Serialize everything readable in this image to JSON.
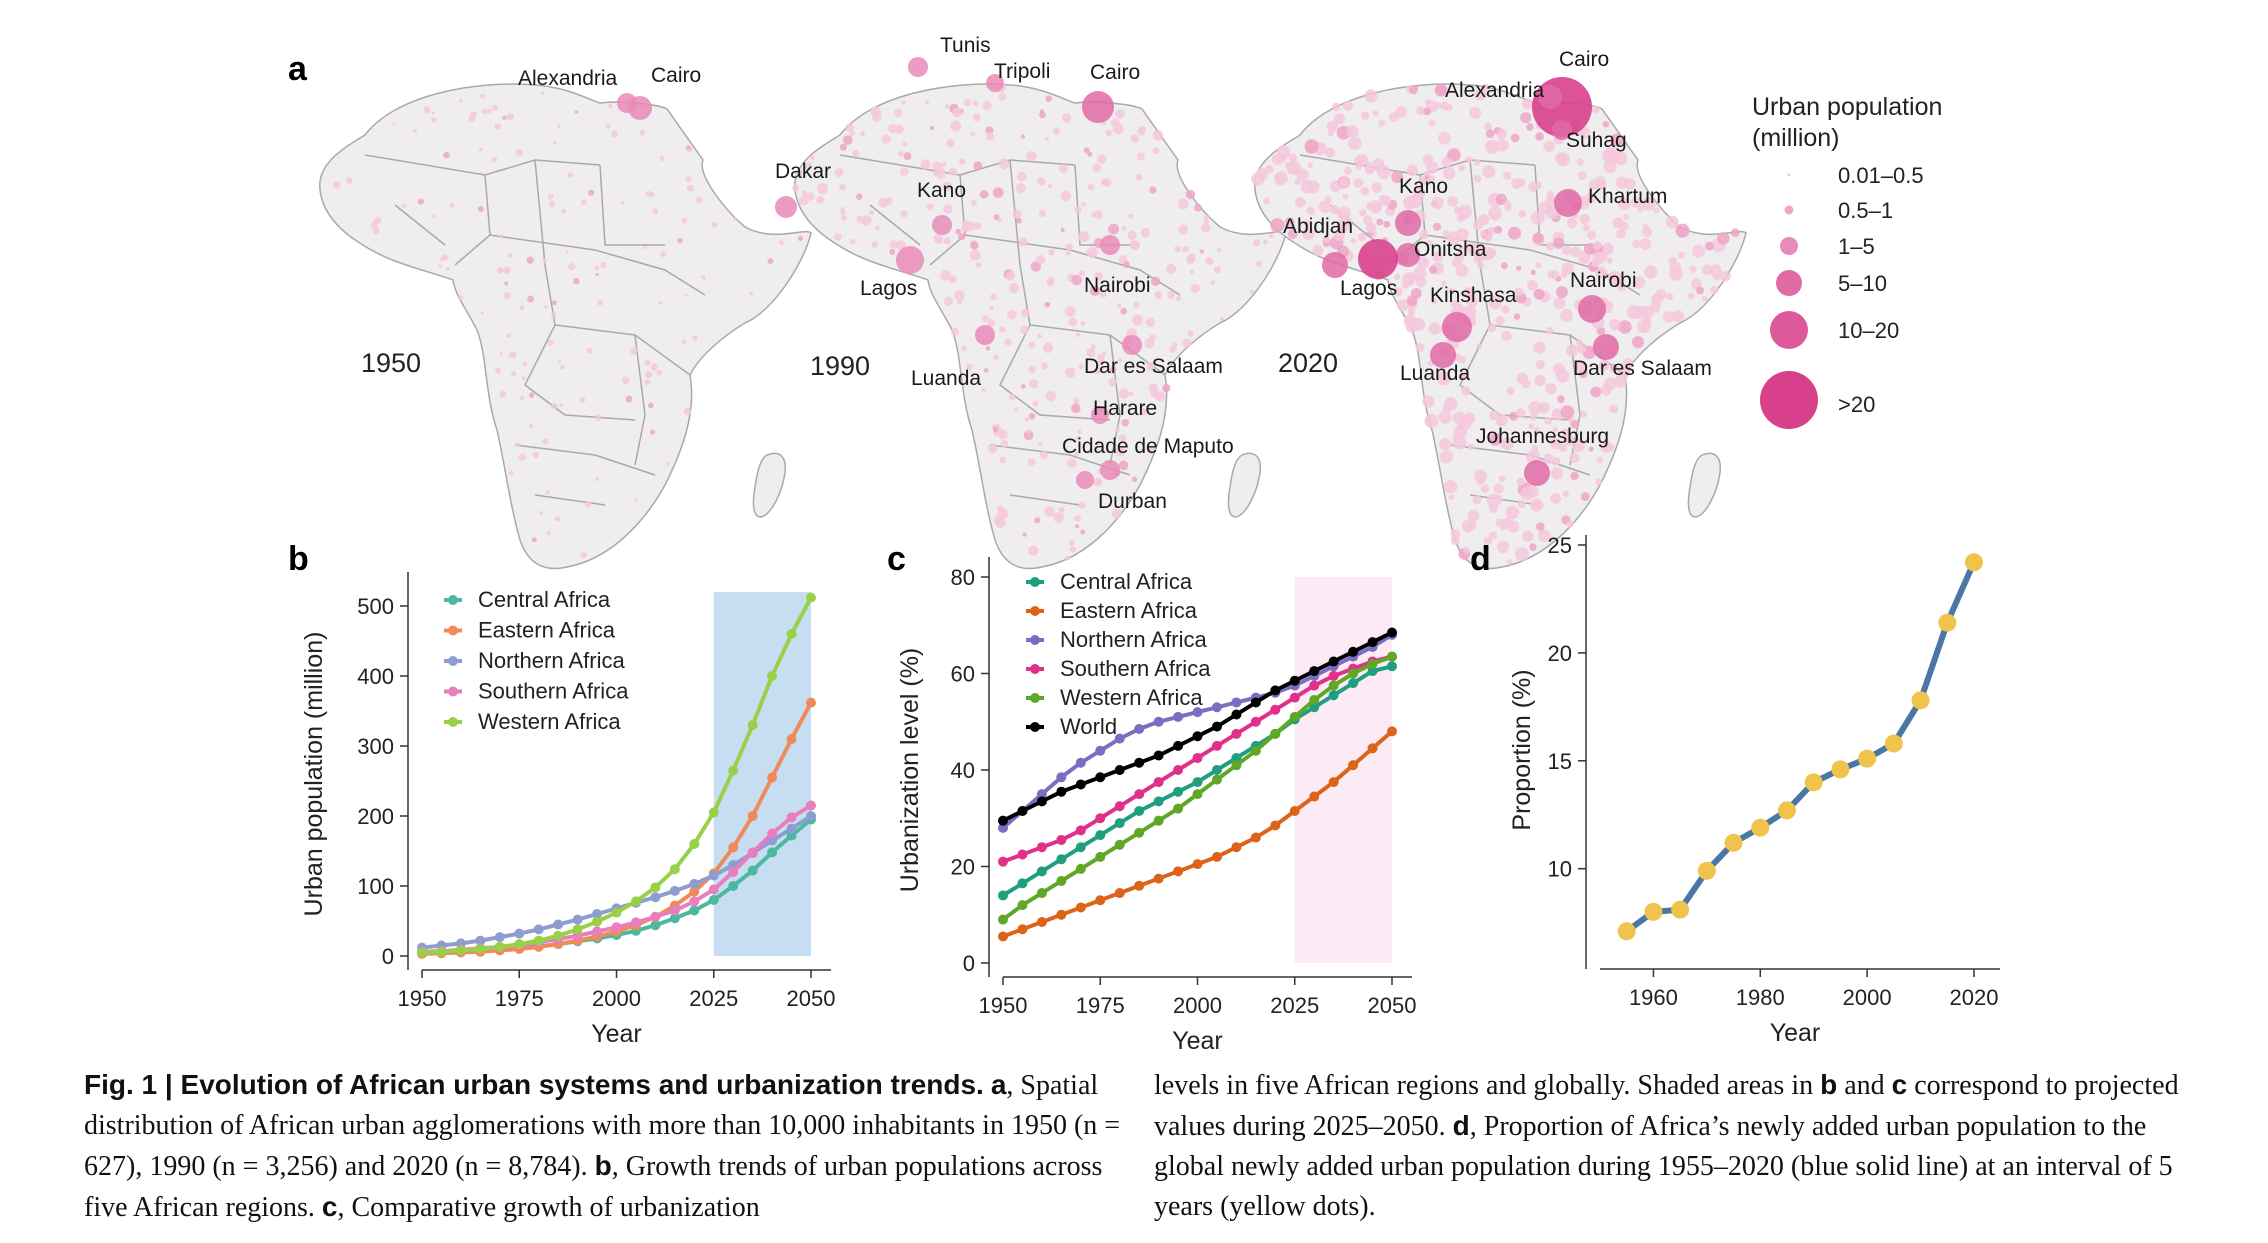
{
  "panel_a": {
    "letter": "a",
    "maps": [
      {
        "year": "1950",
        "cities": [
          "Alexandria",
          "Cairo"
        ]
      },
      {
        "year": "1990",
        "cities": [
          "Tunis",
          "Tripoli",
          "Cairo",
          "Dakar",
          "Kano",
          "Lagos",
          "Nairobi",
          "Dar es Salaam",
          "Luanda",
          "Harare",
          "Cidade de Maputo",
          "Durban"
        ]
      },
      {
        "year": "2020",
        "cities": [
          "Cairo",
          "Alexandria",
          "Suhag",
          "Kano",
          "Khartum",
          "Abidjan",
          "Onitsha",
          "Lagos",
          "Kinshasa",
          "Nairobi",
          "Luanda",
          "Dar es Salaam",
          "Johannesburg"
        ]
      }
    ],
    "legend": {
      "title_line1": "Urban population",
      "title_line2": "(million)",
      "items": [
        "0.01–0.5",
        "0.5–1",
        "1–5",
        "5–10",
        "10–20",
        ">20"
      ]
    },
    "colors": {
      "map_fill": "#efeded",
      "border": "#a9a9a9",
      "dot_light": "#f4c8dc",
      "dot_mid": "#e98ab8",
      "dot_dark": "#d8408c"
    }
  },
  "chart_data": [
    {
      "panel": "b",
      "type": "line",
      "xlabel": "Year",
      "ylabel": "Urban population (million)",
      "xlim": [
        1950,
        2050
      ],
      "ylim": [
        0,
        520
      ],
      "xticks": [
        1950,
        1975,
        2000,
        2025,
        2050
      ],
      "yticks": [
        0,
        100,
        200,
        300,
        400,
        500
      ],
      "shaded_range": [
        2025,
        2050
      ],
      "shade_color": "#c7def2",
      "x": [
        1950,
        1955,
        1960,
        1965,
        1970,
        1975,
        1980,
        1985,
        1990,
        1995,
        2000,
        2005,
        2010,
        2015,
        2020,
        2025,
        2030,
        2035,
        2040,
        2045,
        2050
      ],
      "series": [
        {
          "name": "Central Africa",
          "color": "#4db8a0",
          "values": [
            4,
            5,
            6,
            7,
            9,
            11,
            14,
            17,
            21,
            25,
            30,
            36,
            44,
            54,
            65,
            80,
            100,
            122,
            148,
            172,
            195
          ]
        },
        {
          "name": "Eastern Africa",
          "color": "#f08a5a",
          "values": [
            3,
            4,
            5,
            6,
            8,
            10,
            13,
            17,
            22,
            28,
            35,
            44,
            56,
            72,
            92,
            118,
            155,
            200,
            255,
            310,
            362
          ]
        },
        {
          "name": "Northern Africa",
          "color": "#8e9dd0",
          "values": [
            12,
            15,
            18,
            22,
            27,
            32,
            38,
            45,
            52,
            60,
            68,
            76,
            84,
            93,
            103,
            115,
            130,
            147,
            165,
            182,
            200
          ]
        },
        {
          "name": "Southern Africa",
          "color": "#e77fbd",
          "values": [
            6,
            7,
            9,
            11,
            13,
            16,
            20,
            24,
            29,
            35,
            41,
            48,
            56,
            65,
            78,
            95,
            120,
            148,
            175,
            198,
            215
          ]
        },
        {
          "name": "Western Africa",
          "color": "#98d149",
          "values": [
            5,
            6,
            8,
            10,
            13,
            17,
            22,
            29,
            38,
            49,
            62,
            78,
            98,
            124,
            160,
            205,
            265,
            330,
            400,
            460,
            512
          ]
        }
      ]
    },
    {
      "panel": "c",
      "type": "line",
      "xlabel": "Year",
      "ylabel": "Urbanization level (%)",
      "xlim": [
        1950,
        2050
      ],
      "ylim": [
        0,
        80
      ],
      "xticks": [
        1950,
        1975,
        2000,
        2025,
        2050
      ],
      "yticks": [
        0,
        20,
        40,
        60,
        80
      ],
      "shaded_range": [
        2025,
        2050
      ],
      "shade_color": "#fcebf5",
      "x": [
        1950,
        1955,
        1960,
        1965,
        1970,
        1975,
        1980,
        1985,
        1990,
        1995,
        2000,
        2005,
        2010,
        2015,
        2020,
        2025,
        2030,
        2035,
        2040,
        2045,
        2050
      ],
      "series": [
        {
          "name": "Central Africa",
          "color": "#1f9e80",
          "values": [
            14,
            16.5,
            19,
            21.5,
            24,
            26.5,
            29,
            31.5,
            33.5,
            35.5,
            37.5,
            40,
            42.5,
            45,
            47.5,
            50.5,
            53,
            55.5,
            58,
            60.5,
            61.5
          ]
        },
        {
          "name": "Eastern Africa",
          "color": "#dc6418",
          "values": [
            5.5,
            7,
            8.5,
            10,
            11.5,
            13,
            14.5,
            16,
            17.5,
            19,
            20.5,
            22,
            24,
            26,
            28.5,
            31.5,
            34.5,
            37.5,
            41,
            44.5,
            48
          ]
        },
        {
          "name": "Northern Africa",
          "color": "#7a6ec2",
          "values": [
            28,
            31.5,
            35,
            38.5,
            41.5,
            44,
            46.5,
            48.5,
            50,
            51,
            52,
            53,
            54,
            55,
            56,
            57.5,
            59.5,
            61.5,
            63.5,
            65.5,
            68
          ]
        },
        {
          "name": "Southern Africa",
          "color": "#e0308a",
          "values": [
            21,
            22.5,
            24,
            25.5,
            27.5,
            30,
            32.5,
            35,
            37.5,
            40,
            42.5,
            45,
            47.5,
            50,
            52.5,
            55,
            57.5,
            59.5,
            61,
            62.5,
            63.5
          ]
        },
        {
          "name": "Western Africa",
          "color": "#5fa726",
          "values": [
            9,
            12,
            14.5,
            17,
            19.5,
            22,
            24.5,
            27,
            29.5,
            32,
            35,
            38,
            41,
            44,
            47.5,
            51,
            54.5,
            57.5,
            60,
            62,
            63.5
          ]
        },
        {
          "name": "World",
          "color": "#000000",
          "values": [
            29.5,
            31.5,
            33.5,
            35.5,
            37,
            38.5,
            40,
            41.5,
            43,
            45,
            47,
            49,
            51.5,
            54,
            56.5,
            58.5,
            60.5,
            62.5,
            64.5,
            66.5,
            68.5
          ]
        }
      ]
    },
    {
      "panel": "d",
      "type": "line",
      "xlabel": "Year",
      "ylabel": "Proportion (%)",
      "xlim": [
        1950,
        2023
      ],
      "ylim": [
        6,
        25
      ],
      "xticks": [
        1960,
        1980,
        2000,
        2020
      ],
      "yticks": [
        10,
        15,
        20,
        25
      ],
      "line_color": "#4a77a4",
      "dot_color": "#f0c34c",
      "x": [
        1955,
        1960,
        1965,
        1970,
        1975,
        1980,
        1985,
        1990,
        1995,
        2000,
        2005,
        2010,
        2015,
        2020
      ],
      "values": [
        7.1,
        8,
        8.1,
        9.9,
        11.2,
        11.9,
        12.7,
        14,
        14.6,
        15.1,
        15.8,
        17.8,
        21.4,
        24.2
      ]
    }
  ],
  "caption": {
    "left": {
      "fig_label": "Fig. 1",
      "separator": " | ",
      "title": "Evolution of African urban systems and urbanization trends.",
      "a_label": "a",
      "a_text": ", Spatial distribution of African urban agglomerations with more than 10,000 inhabitants in 1950 (n = 627), 1990 (n = 3,256) and 2020 (n = 8,784).",
      "b_label": "b",
      "b_text": ", Growth trends of urban populations across five African regions.",
      "c_label": "c",
      "c_text": ", Comparative growth of urbanization"
    },
    "right": {
      "text1": "levels in five African regions and globally. Shaded areas in",
      "b_label": "b",
      "and": "and",
      "c_label": "c",
      "text2": "correspond to projected values during 2025–2050.",
      "d_label": "d",
      "text3": ", Proportion of Africa’s newly added urban population to the global newly added urban population during 1955–2020 (blue solid line) at an interval of 5 years (yellow dots)."
    }
  }
}
